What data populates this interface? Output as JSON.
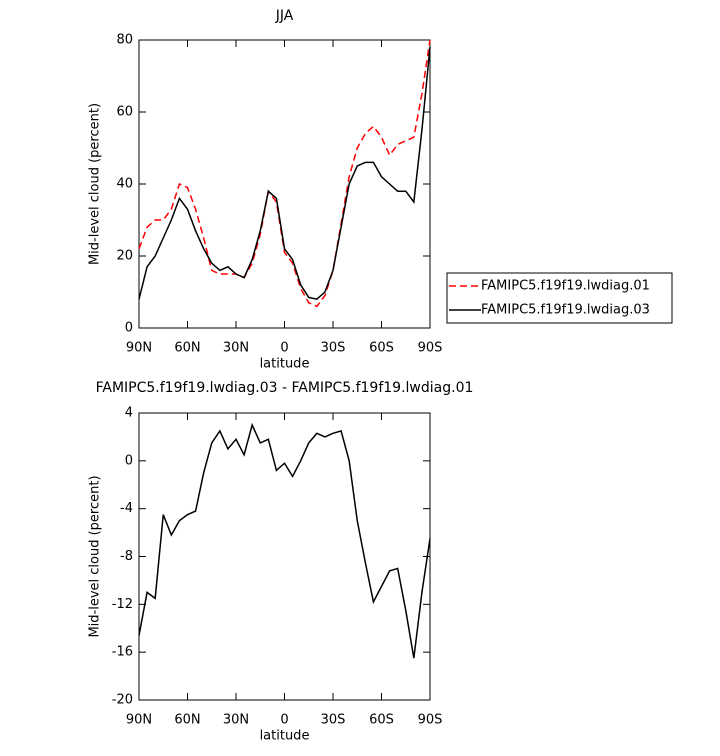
{
  "chart_data": [
    {
      "type": "line",
      "title": "JJA",
      "x_label": "latitude",
      "y_label": "Mid-level cloud (percent)",
      "x": [
        90,
        85,
        80,
        75,
        70,
        65,
        60,
        55,
        50,
        45,
        40,
        35,
        30,
        25,
        20,
        15,
        10,
        5,
        0,
        -5,
        -10,
        -15,
        -20,
        -25,
        -30,
        -35,
        -40,
        -45,
        -50,
        -55,
        -60,
        -65,
        -70,
        -75,
        -80,
        -85,
        -90
      ],
      "series": [
        {
          "name": "FAMIPC5.f19f19.lwdiag.01",
          "color": "#ff0000",
          "style": "dashed",
          "values": [
            22,
            28,
            30,
            30,
            33,
            40,
            39,
            33,
            25,
            16,
            15,
            15,
            15,
            14,
            18,
            26,
            38,
            35,
            21,
            18,
            11,
            7,
            6,
            9,
            16,
            29,
            42,
            50,
            54,
            56,
            53,
            48,
            51,
            52,
            53,
            65,
            80
          ]
        },
        {
          "name": "FAMIPC5.f19f19.lwdiag.03",
          "color": "#000000",
          "style": "solid",
          "values": [
            8,
            17,
            20,
            25,
            30,
            36,
            33,
            27,
            22,
            18,
            16,
            17,
            15,
            14,
            19,
            27,
            38,
            36,
            22,
            19,
            12,
            8.5,
            8,
            10,
            16,
            28,
            40,
            45,
            46,
            46,
            42,
            40,
            38,
            38,
            35,
            55,
            78
          ]
        }
      ],
      "xlim": [
        90,
        -90
      ],
      "xticks": [
        {
          "value": 90,
          "label": "90N"
        },
        {
          "value": 60,
          "label": "60N"
        },
        {
          "value": 30,
          "label": "30N"
        },
        0,
        {
          "value": -30,
          "label": "30S"
        },
        {
          "value": -60,
          "label": "60S"
        },
        {
          "value": -90,
          "label": "90S"
        }
      ],
      "ylim": [
        0,
        80
      ],
      "yticks": [
        0,
        20,
        40,
        60,
        80
      ],
      "legend": "right"
    },
    {
      "type": "line",
      "title": "FAMIPC5.f19f19.lwdiag.03 - FAMIPC5.f19f19.lwdiag.01",
      "x_label": "latitude",
      "y_label": "Mid-level cloud (percent)",
      "x": [
        90,
        85,
        80,
        75,
        70,
        65,
        60,
        55,
        50,
        45,
        40,
        35,
        30,
        25,
        20,
        15,
        10,
        5,
        0,
        -5,
        -10,
        -15,
        -20,
        -25,
        -30,
        -35,
        -40,
        -45,
        -50,
        -55,
        -60,
        -65,
        -70,
        -75,
        -80,
        -85,
        -90
      ],
      "series": [
        {
          "color": "#000000",
          "style": "solid",
          "values": [
            -14.6,
            -11,
            -11.5,
            -4.5,
            -6.2,
            -5,
            -4.5,
            -4.2,
            -1,
            1.5,
            2.5,
            1,
            1.8,
            0.5,
            3,
            1.5,
            1.8,
            -0.8,
            -0.2,
            -1.3,
            0,
            1.5,
            2.3,
            2,
            2.3,
            2.5,
            0,
            -5,
            -8.5,
            -11.8,
            -10.5,
            -9.2,
            -9,
            -12.5,
            -16.5,
            -11,
            -6.5
          ]
        }
      ],
      "xlim": [
        90,
        -90
      ],
      "xticks": [
        {
          "value": 90,
          "label": "90N"
        },
        {
          "value": 60,
          "label": "60N"
        },
        {
          "value": 30,
          "label": "30N"
        },
        0,
        {
          "value": -30,
          "label": "30S"
        },
        {
          "value": -60,
          "label": "60S"
        },
        {
          "value": -90,
          "label": "90S"
        }
      ],
      "ylim": [
        -20,
        4
      ],
      "yticks": [
        -20,
        -16,
        -12,
        -8,
        -4,
        0,
        4
      ]
    }
  ]
}
